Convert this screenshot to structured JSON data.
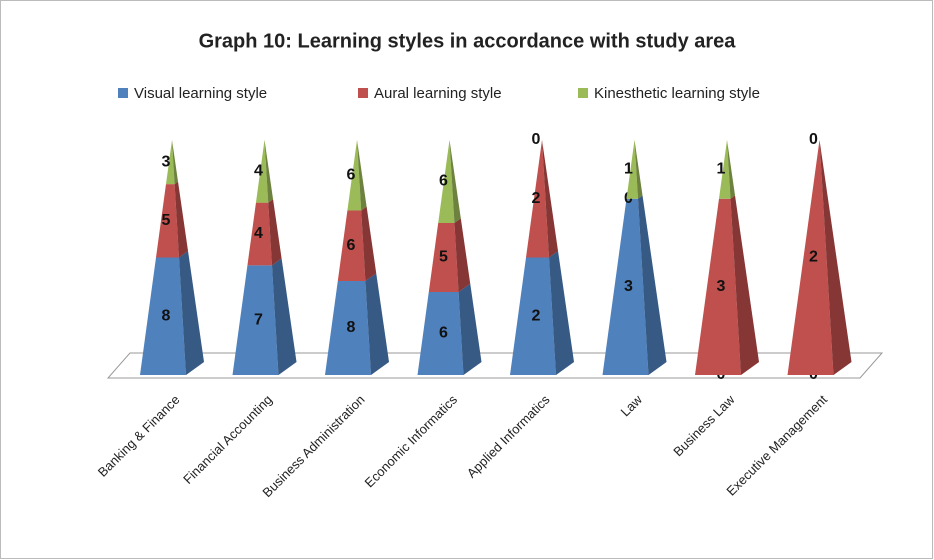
{
  "chart_data": {
    "type": "pyramid",
    "stacking": "percent",
    "title": "Graph 10: Learning styles in accordance with study area",
    "categories": [
      "Banking & Finance",
      "Financial Accounting",
      "Business Administration",
      "Economic Informatics",
      "Applied Informatics",
      "Law",
      "Business Law",
      "Executive Management"
    ],
    "series": [
      {
        "name": "Visual learning style",
        "color": "#4f81bd",
        "values": [
          8,
          7,
          8,
          6,
          2,
          3,
          0,
          0
        ]
      },
      {
        "name": "Aural learning style",
        "color": "#c0504d",
        "values": [
          5,
          4,
          6,
          5,
          2,
          0,
          3,
          2
        ]
      },
      {
        "name": "Kinesthetic learning style",
        "color": "#9bbb59",
        "values": [
          3,
          4,
          6,
          6,
          0,
          1,
          1,
          0
        ]
      }
    ],
    "legend": "top"
  }
}
